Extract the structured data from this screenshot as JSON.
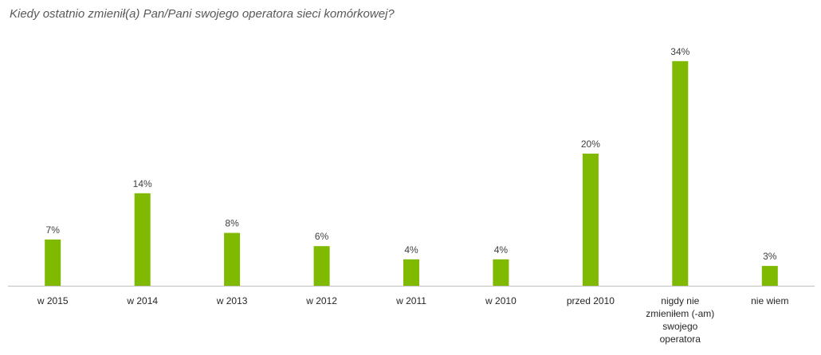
{
  "chart_data": {
    "type": "bar",
    "title": "Kiedy ostatnio zmienił(a) Pan/Pani swojego operatora sieci komórkowej?",
    "categories": [
      "w 2015",
      "w 2014",
      "w 2013",
      "w 2012",
      "w 2011",
      "w 2010",
      "przed 2010",
      "nigdy nie zmieniłem (-am) swojego operatora",
      "nie wiem"
    ],
    "category_lines": [
      [
        "w 2015"
      ],
      [
        "w 2014"
      ],
      [
        "w 2013"
      ],
      [
        "w 2012"
      ],
      [
        "w 2011"
      ],
      [
        "w 2010"
      ],
      [
        "przed 2010"
      ],
      [
        "nigdy nie",
        "zmieniłem (-am)",
        "swojego",
        "operatora"
      ],
      [
        "nie wiem"
      ]
    ],
    "values": [
      7,
      14,
      8,
      6,
      4,
      4,
      20,
      34,
      3
    ],
    "data_labels": [
      "7%",
      "14%",
      "8%",
      "6%",
      "4%",
      "4%",
      "20%",
      "34%",
      "3%"
    ],
    "xlabel": "",
    "ylabel": "",
    "ylim": [
      0,
      35
    ],
    "grid": false,
    "legend": "none",
    "colors": {
      "bar": "#7fba00",
      "axis": "#bfbfbf",
      "title": "#595959"
    }
  }
}
